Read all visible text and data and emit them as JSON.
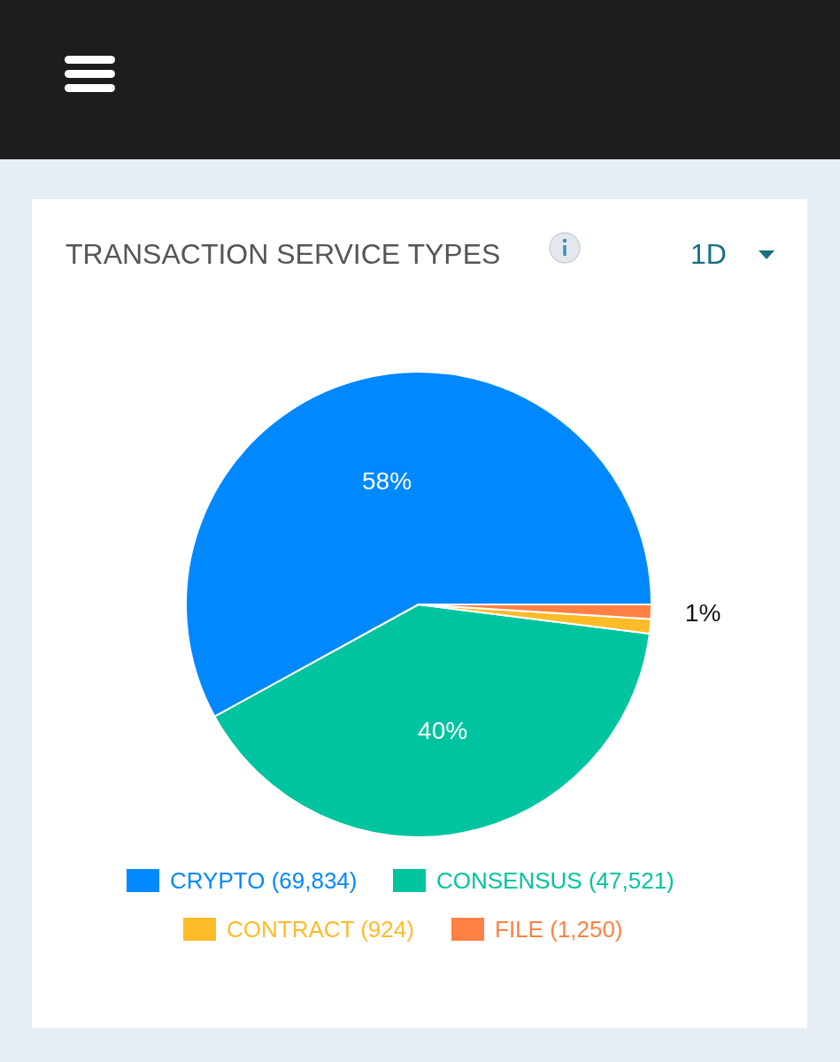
{
  "chart_data": {
    "type": "pie",
    "title": "TRANSACTION SERVICE TYPES",
    "categories": [
      "CRYPTO (69,834)",
      "CONSENSUS (47,521)",
      "CONTRACT (924)",
      "FILE (1,250)"
    ],
    "values": [
      58,
      40,
      1,
      1
    ],
    "colors": [
      "#0088fe",
      "#00c49f",
      "#ffbb28",
      "#ff8042"
    ],
    "value_labels": [
      "58%",
      "40%",
      null,
      "1%"
    ],
    "annotations": [
      "1D"
    ],
    "legend": "bottom"
  }
}
